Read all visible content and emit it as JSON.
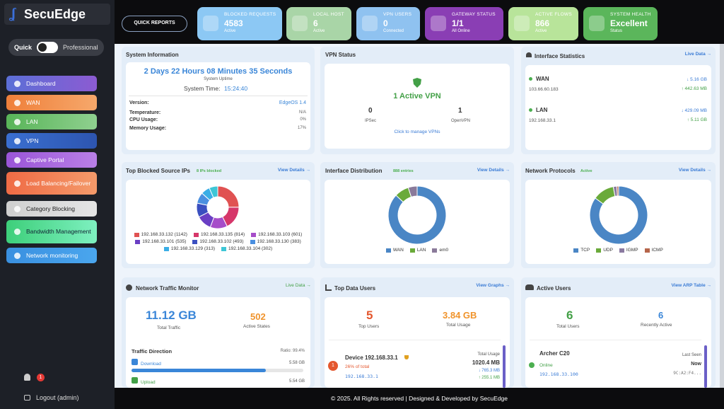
{
  "sidebar": {
    "logo": "SecuEdge",
    "mode_quick": "Quick",
    "mode_pro": "Professional",
    "nav": [
      "Dashboard",
      "WAN",
      "LAN",
      "VPN",
      "Captive Portal",
      "Load Balancing/Failover",
      "Category Blocking",
      "Bandwidth Management",
      "Network monitoring"
    ],
    "notifications": "1",
    "logout": "Logout (admin)"
  },
  "topbar": {
    "quick_reports": "QUICK REPORTS",
    "cards": [
      {
        "label": "BLOCKED REQUESTS",
        "value": "4583",
        "status": "Active"
      },
      {
        "label": "LOCAL HOST",
        "value": "6",
        "status": "Active"
      },
      {
        "label": "VPN USERS",
        "value": "0",
        "status": "Connected"
      },
      {
        "label": "GATEWAY STATUS",
        "value": "1/1",
        "status": "All Online"
      },
      {
        "label": "ACTIVE FLOWS",
        "value": "866",
        "status": "Active"
      },
      {
        "label": "SYSTEM HEALTH",
        "value": "Excellent",
        "status": "Status"
      }
    ]
  },
  "system_info": {
    "title": "System Information",
    "uptime": "2 Days 22 Hours 08 Minutes 35 Seconds",
    "uptime_label": "System Uptime",
    "time_label": "System Time:",
    "time": "15:24:40",
    "rows": [
      [
        "Version:",
        "EdgeOS 1.4"
      ],
      [
        "Temperature:",
        "N/A"
      ],
      [
        "CPU Usage:",
        "0%"
      ],
      [
        "Memory Usage:",
        "17%"
      ]
    ]
  },
  "vpn_status": {
    "title": "VPN Status",
    "headline": "1 Active VPN",
    "ipsec_count": "0",
    "ipsec": "IPSec",
    "openvpn_count": "1",
    "openvpn": "OpenVPN",
    "link": "Click to manage VPNs"
  },
  "interface_stats": {
    "title": "Interface Statistics",
    "link": "Live Data →",
    "interfaces": [
      {
        "name": "WAN",
        "ip": "103.66.60.183",
        "down": "↓ 5.16 GB",
        "up": "↑ 442.63 MB"
      },
      {
        "name": "LAN",
        "ip": "192.168.33.1",
        "down": "↓ 429.09 MB",
        "up": "↑ 5.11 GB"
      }
    ]
  },
  "blocked_ips": {
    "title": "Top Blocked Source IPs",
    "badge": "8 IPs blocked",
    "link": "View Details →",
    "items": [
      {
        "label": "192.168.33.132 (1142)",
        "value": 1142,
        "color": "#e05252"
      },
      {
        "label": "192.168.33.135 (814)",
        "value": 814,
        "color": "#d6376a"
      },
      {
        "label": "192.168.33.103 (601)",
        "value": 601,
        "color": "#a64dc9"
      },
      {
        "label": "192.168.33.101 (535)",
        "value": 535,
        "color": "#6a3fc4"
      },
      {
        "label": "192.168.33.102 (493)",
        "value": 493,
        "color": "#3a4fc0"
      },
      {
        "label": "192.168.33.130 (383)",
        "value": 383,
        "color": "#4a8fe0"
      },
      {
        "label": "192.168.33.129 (313)",
        "value": 313,
        "color": "#3aaee6"
      },
      {
        "label": "192.168.33.104 (302)",
        "value": 302,
        "color": "#3ec6d6"
      }
    ]
  },
  "interface_dist": {
    "title": "Interface Distribution",
    "badge": "888 entries",
    "link": "View Details →",
    "items": [
      {
        "label": "WAN",
        "value": 87,
        "color": "#4a86c5"
      },
      {
        "label": "LAN",
        "value": 8,
        "color": "#6aaa3a"
      },
      {
        "label": "em0",
        "value": 5,
        "color": "#8a7a9a"
      }
    ]
  },
  "protocols": {
    "title": "Network Protocols",
    "badge": "Active",
    "link": "View Details →",
    "items": [
      {
        "label": "TCP",
        "value": 85,
        "color": "#4a86c5"
      },
      {
        "label": "UDP",
        "value": 12,
        "color": "#6aaa3a"
      },
      {
        "label": "IGMP",
        "value": 2,
        "color": "#8a7aa0"
      },
      {
        "label": "ICMP",
        "value": 1,
        "color": "#b5654a"
      }
    ]
  },
  "traffic": {
    "title": "Network Traffic Monitor",
    "link": "Live Data →",
    "total": "11.12 GB",
    "total_label": "Total Traffic",
    "states": "502",
    "states_label": "Active States",
    "direction": "Traffic Direction",
    "ratio": "Ratio: 99.4%",
    "download": "Download",
    "download_value": "5.58 GB",
    "download_progress": 78,
    "upload": "Upload",
    "upload_value": "5.54 GB"
  },
  "data_users": {
    "title": "Top Data Users",
    "link": "View Graphs →",
    "top": "5",
    "top_label": "Top Users",
    "usage": "3.84 GB",
    "usage_label": "Total Usage",
    "rank": "1",
    "device": "Device 192.168.33.1",
    "share": "26% of total",
    "ip": "192.168.33.1",
    "total_label": "Total Usage",
    "total": "1020.4 MB",
    "down": "↓ 765.3 MB",
    "up": "↑ 255.1 MB"
  },
  "active_users": {
    "title": "Active Users",
    "link": "View ARP Table →",
    "total": "6",
    "total_label": "Total Users",
    "recent": "6",
    "recent_label": "Recently Active",
    "device": "Archer C20",
    "status": "Online",
    "ip": "192.168.33.100",
    "last_seen_label": "Last Seen",
    "last_seen": "Now",
    "mac": "9C:A2:F4..."
  },
  "footer": "© 2025. All Rights reserved | Designed & Developed by SecuEdge"
}
